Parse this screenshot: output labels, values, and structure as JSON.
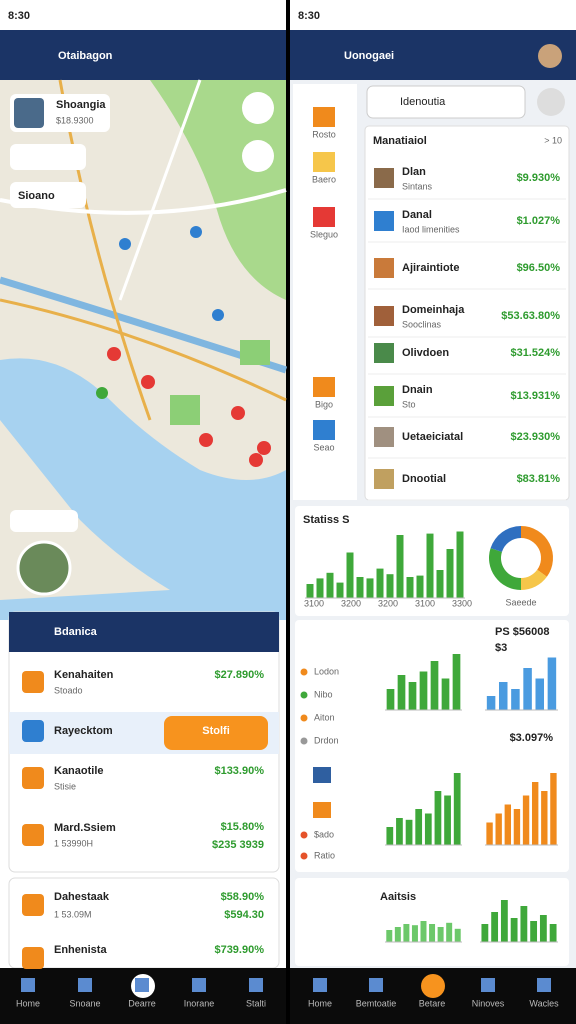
{
  "left": {
    "status_time": "8:30",
    "title": "Otaibagon",
    "map_card": {
      "title": "Shoangia",
      "price": "$18.9300"
    },
    "map_chip": "Sioano",
    "list_title": "Bdanica",
    "items": [
      {
        "name": "Kenahaiten",
        "sub": "Stoado",
        "value": "$27.890%"
      },
      {
        "name": "Rayecktom",
        "button": "Stolfi"
      },
      {
        "name": "Kanaotile",
        "sub": "Stisie",
        "value": "$133.90%"
      },
      {
        "name": "Mard.Ssiem",
        "sub": "1 53990H",
        "value": "$15.80%",
        "value2": "$235 3939"
      }
    ],
    "items2": [
      {
        "name": "Dahestaak",
        "sub": "1 53.09M",
        "value": "$58.90%",
        "value2": "$594.30"
      },
      {
        "name": "Enhenista",
        "value": "$739.90%"
      }
    ],
    "nav": [
      "Home",
      "Snoane",
      "Dearre",
      "Inorane",
      "Stalti"
    ]
  },
  "right": {
    "status_time": "8:30",
    "title": "Uonogaei",
    "search": "Idenoutia",
    "side": [
      "Rosto",
      "Baero",
      "Sleguo",
      "Bigo",
      "Seao"
    ],
    "panel_title": "Manatiaiol",
    "panel_more": "> 10",
    "rows": [
      {
        "name": "Dlan",
        "sub": "Sintans",
        "value": "$9.930%"
      },
      {
        "name": "Danal",
        "sub": "Iaod limenities",
        "value": "$1.027%"
      },
      {
        "name": "Ajiraintiote",
        "value": "$96.50%"
      },
      {
        "name": "Domeinhaja",
        "sub": "Sooclinas",
        "value": "$53.63.80%"
      },
      {
        "name": "Olivdoen",
        "value": "$31.524%"
      },
      {
        "name": "Dnain",
        "sub": "Sto",
        "value": "$13.931%"
      },
      {
        "name": "Uetaeiciatal",
        "value": "$23.930%"
      },
      {
        "name": "Dnootial",
        "value": "$83.81%"
      }
    ],
    "stats_title": "Statiss S",
    "stats_axis": [
      "3100",
      "3200",
      "3200",
      "3100",
      "3300"
    ],
    "stats_bars": {
      "values": [
        20,
        28,
        36,
        22,
        65,
        30,
        28,
        42,
        34,
        90,
        30,
        32,
        92,
        40,
        70,
        95
      ],
      "color": "#3fa83a"
    },
    "donut": {
      "label": "Saeede",
      "values": [
        35,
        15,
        30,
        20
      ],
      "colors": [
        "#f08a1c",
        "#f6c64a",
        "#3fa83a",
        "#2f6fc0"
      ]
    },
    "legend": [
      "Lodon",
      "Nibo",
      "Aiton",
      "Drdon"
    ],
    "legend_colors": [
      "#f08a1c",
      "#3fa83a",
      "#f08a1c",
      "#999999"
    ],
    "kpi": "PS $56008",
    "kpi_sub": "$3",
    "kpi2": "$3.097%",
    "bars_a": {
      "values": [
        30,
        50,
        40,
        55,
        70,
        45,
        80
      ],
      "color": "#3fa83a"
    },
    "bars_b": {
      "values": [
        20,
        40,
        30,
        60,
        45,
        75
      ],
      "color": "#4a9be0"
    },
    "bars_c": {
      "values": [
        20,
        30,
        28,
        40,
        35,
        60,
        55,
        80
      ],
      "color": "#3fa83a"
    },
    "bars_d": {
      "values": [
        25,
        35,
        45,
        40,
        55,
        70,
        60,
        80
      ],
      "color": "#f08a1c"
    },
    "side2": [
      "$ado",
      "Ratio"
    ],
    "card_title": "Aaitsis",
    "bars_e": {
      "values": [
        20,
        25,
        30,
        28,
        35,
        30,
        25,
        32,
        22
      ],
      "color": "#6cc86a"
    },
    "bars_f": {
      "values": [
        30,
        50,
        70,
        40,
        60,
        35,
        45,
        30
      ],
      "color": "#3fa83a"
    },
    "nav": [
      "Home",
      "Bemtoatie",
      "Betare",
      "Ninoves",
      "Wacles"
    ]
  }
}
